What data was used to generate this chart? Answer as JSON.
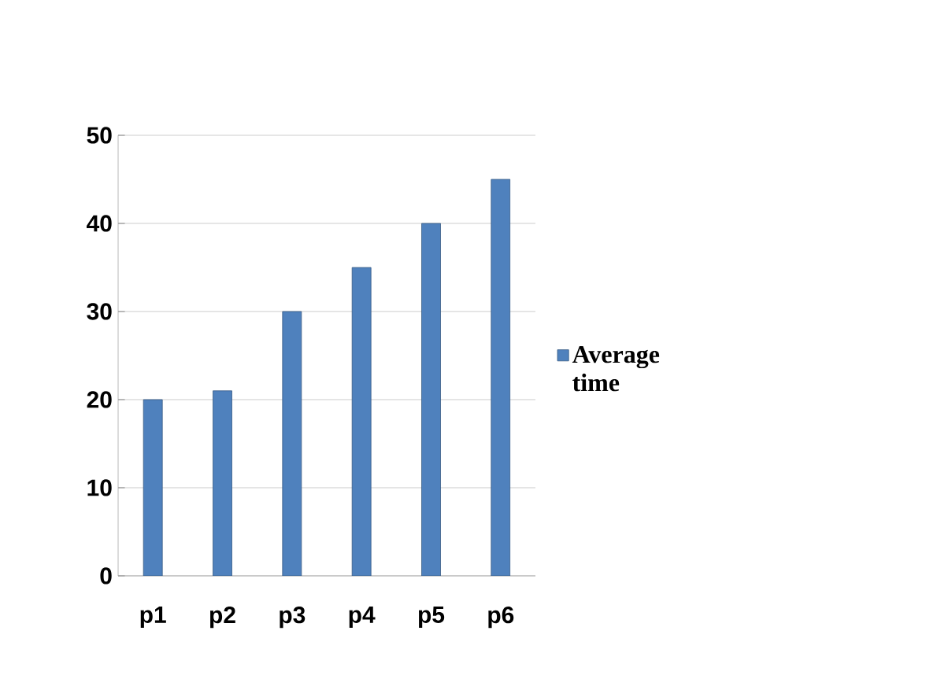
{
  "chart_data": {
    "type": "bar",
    "categories": [
      "p1",
      "p2",
      "p3",
      "p4",
      "p5",
      "p6"
    ],
    "series": [
      {
        "name": "Average time",
        "color": "#4f81bd",
        "values": [
          20,
          21,
          30,
          35,
          40,
          45
        ]
      }
    ],
    "ylim": [
      0,
      50
    ],
    "yticks": [
      0,
      10,
      20,
      30,
      40,
      50
    ],
    "grid": "y",
    "legend": "right"
  }
}
